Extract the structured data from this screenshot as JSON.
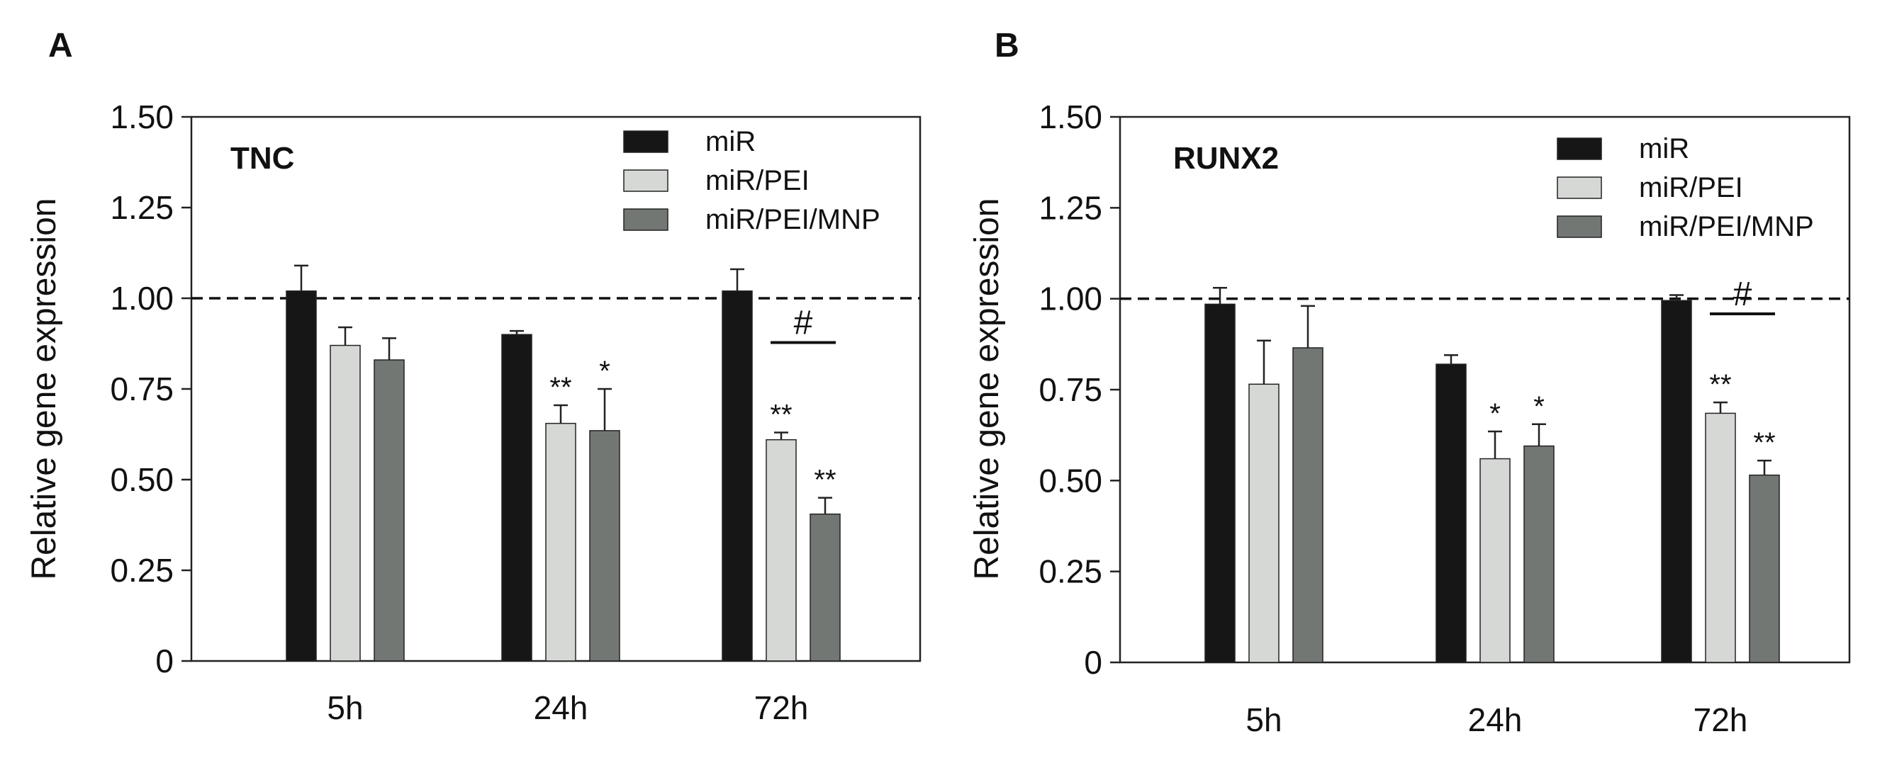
{
  "chart_data": [
    {
      "type": "bar",
      "panel": "A",
      "title": "TNC",
      "xlabel": "",
      "ylabel": "Relative gene expression",
      "ylim": [
        0,
        1.5
      ],
      "yticks": [
        "0",
        "0.25",
        "0.50",
        "0.75",
        "1.00",
        "1.25",
        "1.50"
      ],
      "reference_line": 1.0,
      "categories": [
        "5h",
        "24h",
        "72h"
      ],
      "legend_position": "top-right",
      "series": [
        {
          "name": "miR",
          "color": "#161616",
          "values": [
            1.02,
            0.9,
            1.02
          ],
          "errors": [
            0.07,
            0.01,
            0.06
          ],
          "annotations": [
            "",
            "",
            ""
          ]
        },
        {
          "name": "miR/PEI",
          "color": "#d6d8d6",
          "values": [
            0.87,
            0.655,
            0.61
          ],
          "errors": [
            0.05,
            0.05,
            0.02
          ],
          "annotations": [
            "",
            "**",
            "**"
          ]
        },
        {
          "name": "miR/PEI/MNP",
          "color": "#727774",
          "values": [
            0.83,
            0.635,
            0.405
          ],
          "errors": [
            0.06,
            0.115,
            0.045
          ],
          "annotations": [
            "",
            "*",
            "**"
          ]
        }
      ],
      "bracket_label": "#"
    },
    {
      "type": "bar",
      "panel": "B",
      "title": "RUNX2",
      "xlabel": "",
      "ylabel": "Relative gene expression",
      "ylim": [
        0,
        1.5
      ],
      "yticks": [
        "0",
        "0.25",
        "0.50",
        "0.75",
        "1.00",
        "1.25",
        "1.50"
      ],
      "reference_line": 1.0,
      "categories": [
        "5h",
        "24h",
        "72h"
      ],
      "legend_position": "top-right",
      "series": [
        {
          "name": "miR",
          "color": "#161616",
          "values": [
            0.985,
            0.82,
            0.995
          ],
          "errors": [
            0.045,
            0.025,
            0.015
          ],
          "annotations": [
            "",
            "",
            ""
          ]
        },
        {
          "name": "miR/PEI",
          "color": "#d6d8d6",
          "values": [
            0.765,
            0.56,
            0.685
          ],
          "errors": [
            0.12,
            0.075,
            0.03
          ],
          "annotations": [
            "",
            "*",
            "**"
          ]
        },
        {
          "name": "miR/PEI/MNP",
          "color": "#727774",
          "values": [
            0.865,
            0.595,
            0.515
          ],
          "errors": [
            0.115,
            0.06,
            0.04
          ],
          "annotations": [
            "",
            "*",
            "**"
          ]
        }
      ],
      "bracket_label": "#"
    }
  ]
}
